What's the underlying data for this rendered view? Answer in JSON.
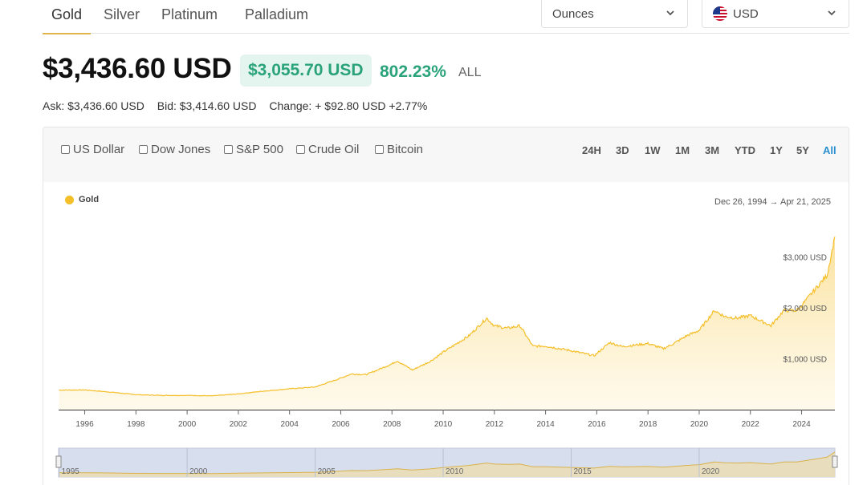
{
  "metals": [
    {
      "label": "Gold"
    },
    {
      "label": "Silver"
    },
    {
      "label": "Platinum"
    },
    {
      "label": "Palladium"
    }
  ],
  "unit_select": {
    "value": "Ounces"
  },
  "currency_select": {
    "value": "USD"
  },
  "price": {
    "main": "$3,436.60 USD",
    "change": "$3,055.70 USD",
    "change_pct": "802.23%",
    "period": "ALL"
  },
  "quote": {
    "ask": "Ask: $3,436.60 USD",
    "bid": "Bid: $3,414.60 USD",
    "change": "Change: + $92.80 USD +2.77%"
  },
  "compare": [
    {
      "label": "US Dollar"
    },
    {
      "label": "Dow Jones"
    },
    {
      "label": "S&P 500"
    },
    {
      "label": "Crude Oil"
    },
    {
      "label": "Bitcoin"
    }
  ],
  "ranges": [
    {
      "label": "24H"
    },
    {
      "label": "3D"
    },
    {
      "label": "1W"
    },
    {
      "label": "1M"
    },
    {
      "label": "3M"
    },
    {
      "label": "YTD"
    },
    {
      "label": "1Y"
    },
    {
      "label": "5Y"
    },
    {
      "label": "All"
    }
  ],
  "colors": {
    "gold": "#f5bf2a",
    "accent": "#2aa37b",
    "active_range": "#2a8fd1"
  },
  "chart_data": {
    "type": "area",
    "legend": "Gold",
    "date_range_start": "Dec 26, 1994",
    "date_range_end": "Apr 21, 2025",
    "y_tick_labels": [
      "$1,000 USD",
      "$2,000 USD",
      "$3,000 USD"
    ],
    "y_ticks": [
      1000,
      2000,
      3000
    ],
    "x_tick_labels": [
      "1996",
      "1998",
      "2000",
      "2002",
      "2004",
      "2006",
      "2008",
      "2010",
      "2012",
      "2014",
      "2016",
      "2018",
      "2020",
      "2022",
      "2024"
    ],
    "navigator_labels": [
      "1995",
      "2000",
      "2005",
      "2010",
      "2015",
      "2020"
    ],
    "x": [
      1995.0,
      1996.0,
      1997.0,
      1998.0,
      1999.0,
      2000.0,
      2001.0,
      2002.0,
      2003.0,
      2004.0,
      2005.0,
      2006.0,
      2006.4,
      2007.0,
      2008.0,
      2008.2,
      2008.8,
      2009.5,
      2010.0,
      2011.0,
      2011.7,
      2012.0,
      2012.5,
      2013.0,
      2013.5,
      2014.0,
      2015.0,
      2015.9,
      2016.5,
      2017.0,
      2018.0,
      2018.6,
      2019.0,
      2019.5,
      2020.0,
      2020.6,
      2021.0,
      2021.5,
      2022.0,
      2022.8,
      2023.3,
      2023.8,
      2024.0,
      2024.5,
      2025.0,
      2025.3
    ],
    "values": [
      385,
      388,
      345,
      295,
      280,
      280,
      272,
      310,
      365,
      410,
      445,
      620,
      700,
      690,
      900,
      960,
      780,
      950,
      1130,
      1450,
      1800,
      1650,
      1600,
      1650,
      1250,
      1250,
      1160,
      1060,
      1320,
      1240,
      1300,
      1200,
      1300,
      1450,
      1560,
      1950,
      1830,
      1800,
      1850,
      1650,
      1950,
      1950,
      2050,
      2350,
      2650,
      3400
    ],
    "ylim": [
      0,
      3500
    ],
    "xlim": [
      1994.98,
      2025.3
    ]
  }
}
